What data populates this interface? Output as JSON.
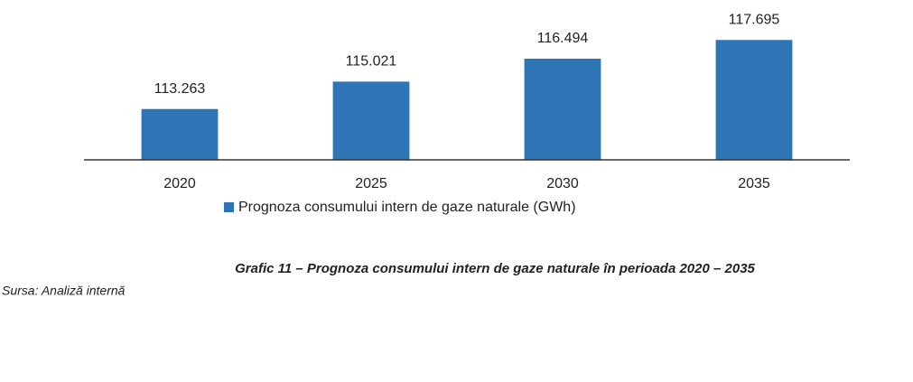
{
  "chart_data": {
    "type": "bar",
    "categories": [
      "2020",
      "2025",
      "2030",
      "2035"
    ],
    "series": [
      {
        "name": "Prognoza consumului intern de gaze naturale (GWh)",
        "color": "#2e75b6",
        "values": [
          113263,
          115021,
          116494,
          117695
        ],
        "value_labels": [
          "113.263",
          "115.021",
          "116.494",
          "117.695"
        ]
      }
    ],
    "ylim": [
      110000,
      118000
    ],
    "caption": "Grafic 11 – Prognoza consumului intern de gaze naturale în perioada 2020 – 2035",
    "source": "Sursa: Analiză internă"
  }
}
